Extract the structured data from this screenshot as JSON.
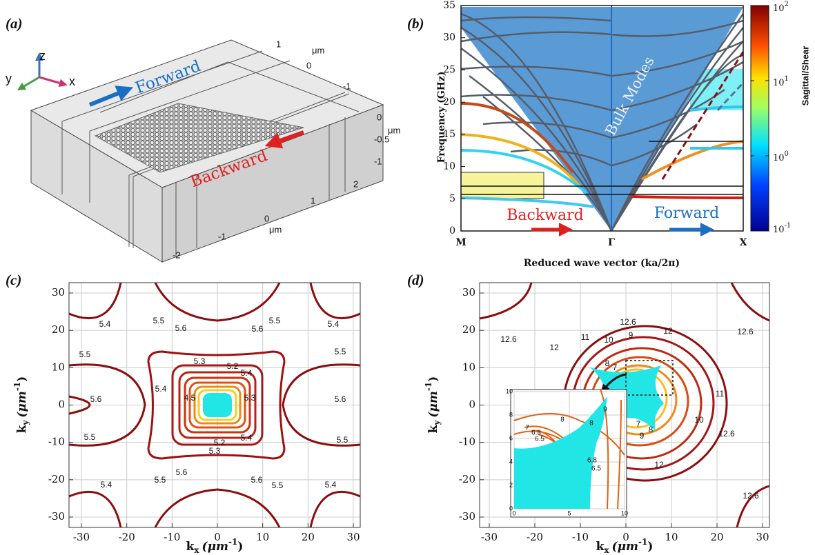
{
  "panel_a": {
    "label": "(a)",
    "axes": {
      "z": "z",
      "y": "y",
      "x": "x"
    },
    "forward": "Forward",
    "backward": "Backward",
    "top_ticks": [
      1,
      0,
      -1
    ],
    "top_unit": "μm",
    "side_ticks": [
      0,
      -0.5,
      -1
    ],
    "side_unit": "μm",
    "bottom_ticks": [
      2,
      1,
      0,
      -1,
      -2
    ],
    "bottom_unit": "μm"
  },
  "panel_b": {
    "label": "(b)",
    "y_label": "Frequency (GHz)",
    "x_label": "Reduced wave vector (ka/2π)",
    "y_ticks": [
      35,
      30,
      25,
      20,
      15,
      10,
      5,
      0
    ],
    "x_ticks": [
      "M",
      "Γ",
      "X"
    ],
    "annotation": "Bulk Modes",
    "backward": "Backward",
    "forward": "Forward",
    "colorbar": {
      "label": "Sagittal/Shear",
      "ticks": [
        {
          "base": "10",
          "exp": "2"
        },
        {
          "base": "10",
          "exp": "1"
        },
        {
          "base": "10",
          "exp": "0"
        },
        {
          "base": "10",
          "exp": "-1"
        }
      ]
    }
  },
  "panel_c": {
    "label": "(c)",
    "x_label": {
      "k": "k",
      "sub": "x",
      "unit": "(μm",
      "sup": "-1",
      "close": ")"
    },
    "y_label": {
      "k": "k",
      "sub": "y",
      "unit": "(μm",
      "sup": "-1",
      "close": ")"
    },
    "x_ticks": [
      -30,
      -20,
      -10,
      0,
      10,
      20,
      30
    ],
    "y_ticks": [
      30,
      20,
      10,
      0,
      -10,
      -20,
      -30
    ],
    "contour_labels": [
      "5.4",
      "5.5",
      "5.6",
      "5.6",
      "5.5",
      "5.4",
      "5.5",
      "5.5",
      "5.4",
      "5.3",
      "5.2",
      "5.4",
      "5.6",
      "5.6",
      "4.5",
      "5.3",
      "5.2",
      "5.3",
      "5.4",
      "5.5",
      "5.5",
      "5.4",
      "5.5",
      "5.6",
      "5.6",
      "5.5",
      "5.4"
    ]
  },
  "panel_d": {
    "label": "(d)",
    "x_label": {
      "k": "k",
      "sub": "x",
      "unit": "(μm",
      "sup": "-1",
      "close": ")"
    },
    "y_label": {
      "k": "k",
      "sub": "y",
      "unit": "(μm",
      "sup": "-1",
      "close": ")"
    },
    "x_ticks": [
      -30,
      -20,
      -10,
      0,
      10,
      20,
      30
    ],
    "y_ticks": [
      30,
      20,
      10,
      0,
      -10,
      -20,
      -30
    ],
    "contour_labels": [
      "12.6",
      "12.6",
      "12.6",
      "12",
      "12",
      "11",
      "11",
      "10",
      "10",
      "9",
      "9",
      "8",
      "8",
      "7",
      "7",
      "12.6",
      "12",
      "12.6"
    ],
    "inset": {
      "x_ticks": [
        0,
        5,
        10
      ],
      "y_ticks": [
        10,
        8,
        6,
        4,
        2,
        0
      ],
      "contour_labels": [
        "8",
        "9",
        "7",
        "6.8",
        "6.5",
        "8",
        "6.8",
        "6.5"
      ]
    }
  }
}
